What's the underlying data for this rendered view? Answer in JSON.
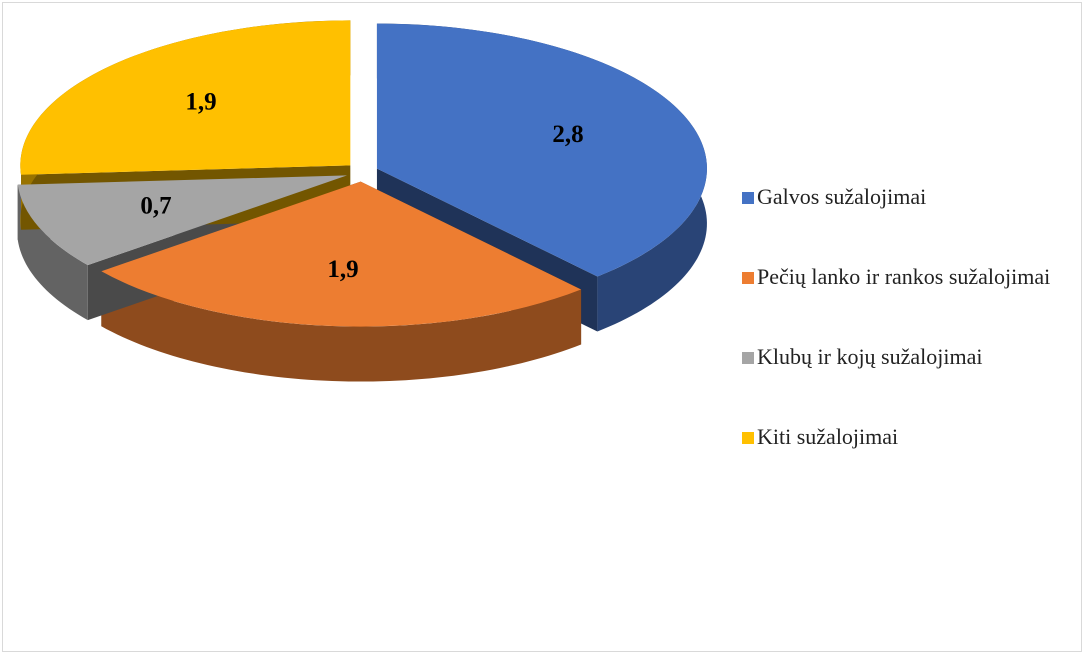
{
  "chart_data": {
    "type": "pie",
    "categories": [
      "Galvos sužalojimai",
      "Pečių lanko ir rankos sužalojimai",
      "Klubų ir kojų sužalojimai",
      "Kiti sužalojimai"
    ],
    "values": [
      2.8,
      1.9,
      0.7,
      1.9
    ],
    "value_labels": [
      "2,8",
      "1,9",
      "0,7",
      "1,9"
    ],
    "colors": [
      "#4472c4",
      "#ed7d31",
      "#a5a5a5",
      "#ffc000"
    ],
    "legend": "right"
  }
}
